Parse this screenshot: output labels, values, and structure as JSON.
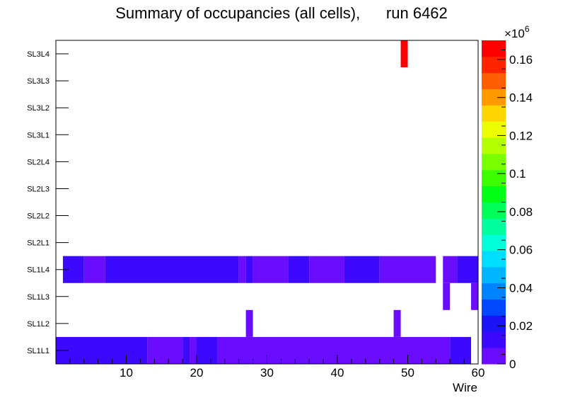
{
  "chart_data": {
    "type": "heatmap",
    "title": "Summary of occupancies (all cells),",
    "run_label": "run 6462",
    "xlabel": "Wire",
    "ylabel": "",
    "x_range": [
      0,
      60
    ],
    "x_ticks": [
      10,
      20,
      30,
      40,
      50,
      60
    ],
    "layers": [
      "SL1L1",
      "SL1L2",
      "SL1L3",
      "SL1L4",
      "SL2L1",
      "SL2L2",
      "SL2L3",
      "SL2L4",
      "SL3L1",
      "SL3L2",
      "SL3L3",
      "SL3L4"
    ],
    "z_range": [
      0,
      0.17
    ],
    "z_exponent_label": "×10",
    "z_exponent_power": "6",
    "z_ticks": [
      {
        "value": 0,
        "label": "0"
      },
      {
        "value": 0.02,
        "label": "0.02"
      },
      {
        "value": 0.04,
        "label": "0.04"
      },
      {
        "value": 0.06,
        "label": "0.06"
      },
      {
        "value": 0.08,
        "label": "0.08"
      },
      {
        "value": 0.1,
        "label": "0.1"
      },
      {
        "value": 0.12,
        "label": "0.12"
      },
      {
        "value": 0.14,
        "label": "0.14"
      },
      {
        "value": 0.16,
        "label": "0.16"
      }
    ],
    "palette": [
      "#6a0dfe",
      "#3c09fd",
      "#1c14f7",
      "#0047ff",
      "#0083ff",
      "#00b4ff",
      "#00ddff",
      "#00ffd8",
      "#00ff9c",
      "#00ff58",
      "#00ff14",
      "#3eff00",
      "#7aff00",
      "#b4ff00",
      "#ecff00",
      "#ffd500",
      "#ff9900",
      "#ff5d00",
      "#ff2400",
      "#ff0000"
    ],
    "cells": [
      {
        "layer": "SL1L1",
        "x0": 0,
        "x1": 13,
        "value": 0.013
      },
      {
        "layer": "SL1L1",
        "x0": 13,
        "x1": 18,
        "value": 0.007
      },
      {
        "layer": "SL1L1",
        "x0": 18,
        "x1": 19,
        "value": 0.013
      },
      {
        "layer": "SL1L1",
        "x0": 19,
        "x1": 20,
        "value": 0.007
      },
      {
        "layer": "SL1L1",
        "x0": 20,
        "x1": 23,
        "value": 0.013
      },
      {
        "layer": "SL1L1",
        "x0": 23,
        "x1": 56,
        "value": 0.007
      },
      {
        "layer": "SL1L1",
        "x0": 56,
        "x1": 59,
        "value": 0.013
      },
      {
        "layer": "SL1L2",
        "x0": 27,
        "x1": 28,
        "value": 0.006
      },
      {
        "layer": "SL1L2",
        "x0": 48,
        "x1": 49,
        "value": 0.006
      },
      {
        "layer": "SL1L3",
        "x0": 55,
        "x1": 56,
        "value": 0.006
      },
      {
        "layer": "SL1L3",
        "x0": 59,
        "x1": 60,
        "value": 0.006
      },
      {
        "layer": "SL1L4",
        "x0": 1,
        "x1": 4,
        "value": 0.013
      },
      {
        "layer": "SL1L4",
        "x0": 4,
        "x1": 7,
        "value": 0.007
      },
      {
        "layer": "SL1L4",
        "x0": 7,
        "x1": 26,
        "value": 0.013
      },
      {
        "layer": "SL1L4",
        "x0": 26,
        "x1": 27,
        "value": 0.007
      },
      {
        "layer": "SL1L4",
        "x0": 27,
        "x1": 28,
        "value": 0.013
      },
      {
        "layer": "SL1L4",
        "x0": 28,
        "x1": 33,
        "value": 0.007
      },
      {
        "layer": "SL1L4",
        "x0": 33,
        "x1": 36,
        "value": 0.013
      },
      {
        "layer": "SL1L4",
        "x0": 36,
        "x1": 41,
        "value": 0.007
      },
      {
        "layer": "SL1L4",
        "x0": 41,
        "x1": 46,
        "value": 0.013
      },
      {
        "layer": "SL1L4",
        "x0": 46,
        "x1": 54,
        "value": 0.007
      },
      {
        "layer": "SL1L4",
        "x0": 55,
        "x1": 57,
        "value": 0.007
      },
      {
        "layer": "SL1L4",
        "x0": 57,
        "x1": 60,
        "value": 0.013
      },
      {
        "layer": "SL3L4",
        "x0": 49,
        "x1": 50,
        "value": 0.168
      }
    ]
  }
}
